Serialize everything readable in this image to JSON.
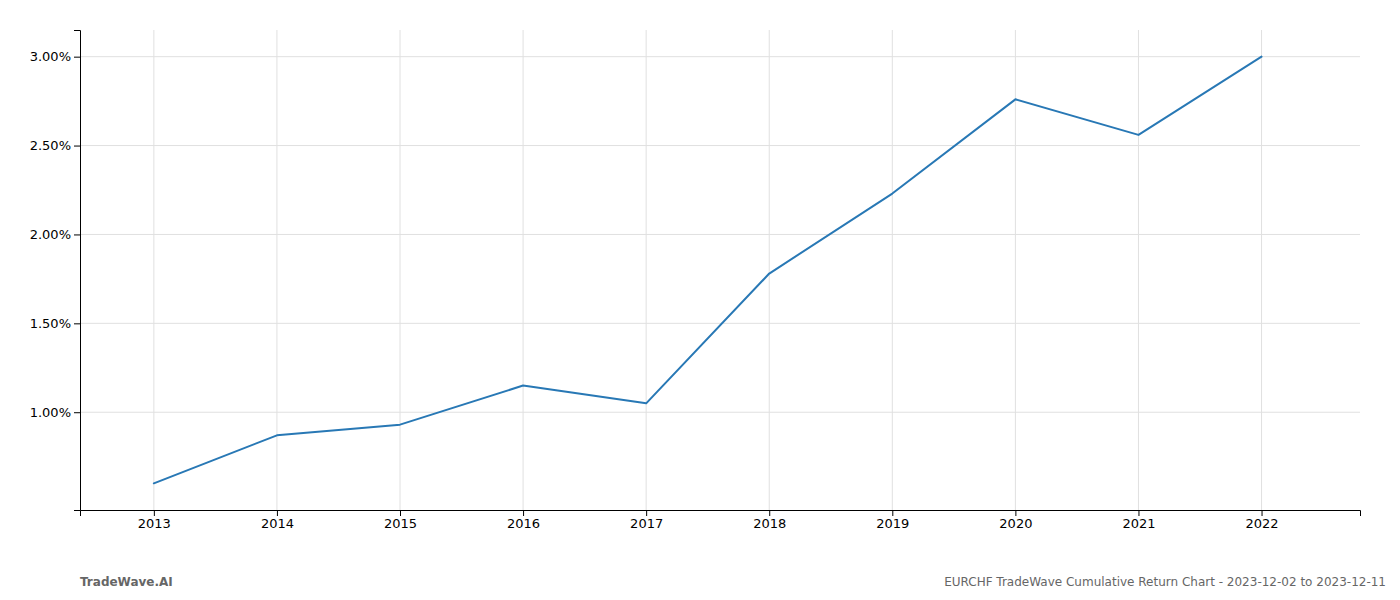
{
  "chart_data": {
    "type": "line",
    "x": [
      2013,
      2014,
      2015,
      2016,
      2017,
      2018,
      2019,
      2020,
      2021,
      2022
    ],
    "values": [
      0.006,
      0.0087,
      0.0093,
      0.0115,
      0.0105,
      0.0178,
      0.0223,
      0.0276,
      0.0256,
      0.03
    ],
    "color": "#2878b5",
    "xlim": [
      2012.4,
      2022.8
    ],
    "xticks": [
      2013,
      2014,
      2015,
      2016,
      2017,
      2018,
      2019,
      2020,
      2021,
      2022
    ],
    "ylim": [
      0.0045,
      0.0315
    ],
    "yticks": [
      {
        "value": 0.01,
        "label": "1.00%"
      },
      {
        "value": 0.015,
        "label": "1.50%"
      },
      {
        "value": 0.02,
        "label": "2.00%"
      },
      {
        "value": 0.025,
        "label": "2.50%"
      },
      {
        "value": 0.03,
        "label": "3.00%"
      }
    ],
    "grid": true,
    "annotations": [
      "TradeWave.AI",
      "EURCHF TradeWave Cumulative Return Chart - 2023-12-02 to 2023-12-11"
    ]
  }
}
